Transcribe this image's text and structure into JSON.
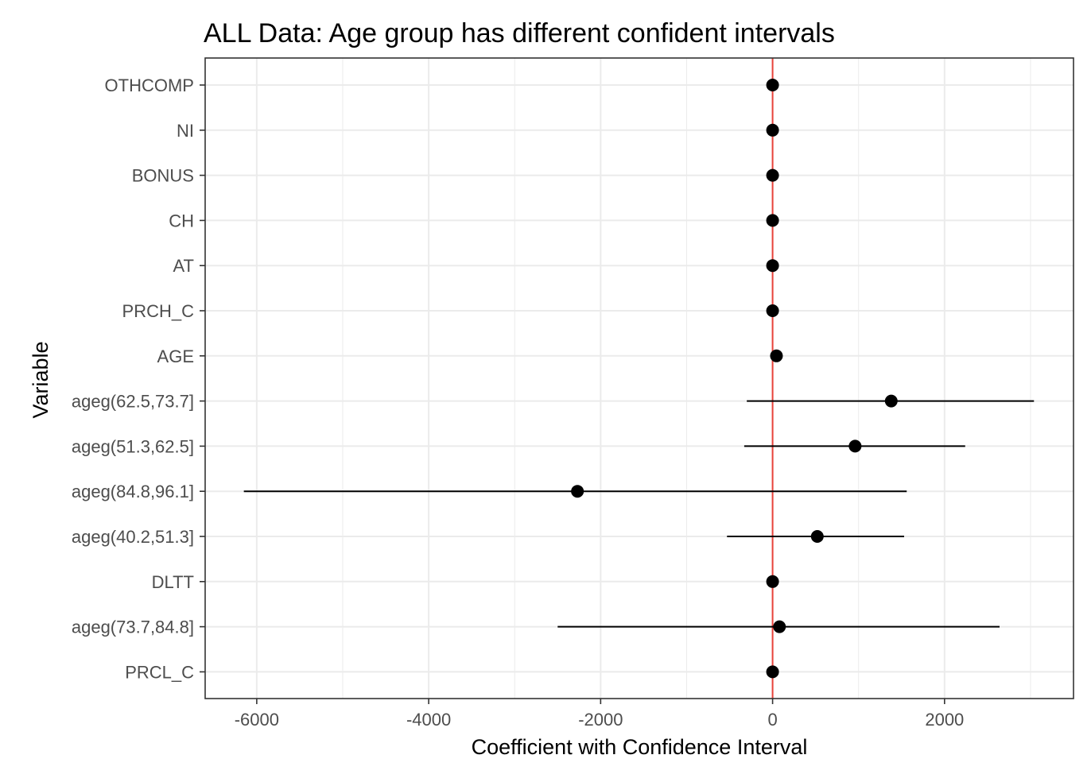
{
  "chart_data": {
    "type": "scatter",
    "title": "ALL Data: Age group has different confident intervals",
    "xlabel": "Coefficient with Confidence Interval",
    "ylabel": "Variable",
    "xlim": [
      -6600,
      3500
    ],
    "x_ticks": [
      -6000,
      -4000,
      -2000,
      0,
      2000
    ],
    "x_tick_labels": [
      "-6000",
      "-4000",
      "-2000",
      "0",
      "2000"
    ],
    "reference_line": {
      "x": 0,
      "color": "#e8423a"
    },
    "grid": true,
    "categories": [
      "OTHCOMP",
      "NI",
      "BONUS",
      "CH",
      "AT",
      "PRCH_C",
      "AGE",
      "ageg(62.5,73.7]",
      "ageg(51.3,62.5]",
      "ageg(84.8,96.1]",
      "ageg(40.2,51.3]",
      "DLTT",
      "ageg(73.7,84.8]",
      "PRCL_C"
    ],
    "points": [
      {
        "label": "OTHCOMP",
        "estimate": 0,
        "lower": 0,
        "upper": 0
      },
      {
        "label": "NI",
        "estimate": 0,
        "lower": 0,
        "upper": 0
      },
      {
        "label": "BONUS",
        "estimate": 0,
        "lower": 0,
        "upper": 0
      },
      {
        "label": "CH",
        "estimate": 0,
        "lower": 0,
        "upper": 0
      },
      {
        "label": "AT",
        "estimate": 0,
        "lower": 0,
        "upper": 0
      },
      {
        "label": "PRCH_C",
        "estimate": 0,
        "lower": 0,
        "upper": 0
      },
      {
        "label": "AGE",
        "estimate": 45,
        "lower": 45,
        "upper": 45
      },
      {
        "label": "ageg(62.5,73.7]",
        "estimate": 1380,
        "lower": -300,
        "upper": 3040
      },
      {
        "label": "ageg(51.3,62.5]",
        "estimate": 960,
        "lower": -330,
        "upper": 2240
      },
      {
        "label": "ageg(84.8,96.1]",
        "estimate": -2270,
        "lower": -6150,
        "upper": 1560
      },
      {
        "label": "ageg(40.2,51.3]",
        "estimate": 520,
        "lower": -530,
        "upper": 1530
      },
      {
        "label": "DLTT",
        "estimate": 0,
        "lower": 0,
        "upper": 0
      },
      {
        "label": "ageg(73.7,84.8]",
        "estimate": 80,
        "lower": -2500,
        "upper": 2640
      },
      {
        "label": "PRCL_C",
        "estimate": 0,
        "lower": 0,
        "upper": 0
      }
    ],
    "colors": {
      "points": "#000000",
      "grid": "#ebebeb",
      "panel_border": "#333333",
      "tick_text": "#4d4d4d"
    }
  }
}
